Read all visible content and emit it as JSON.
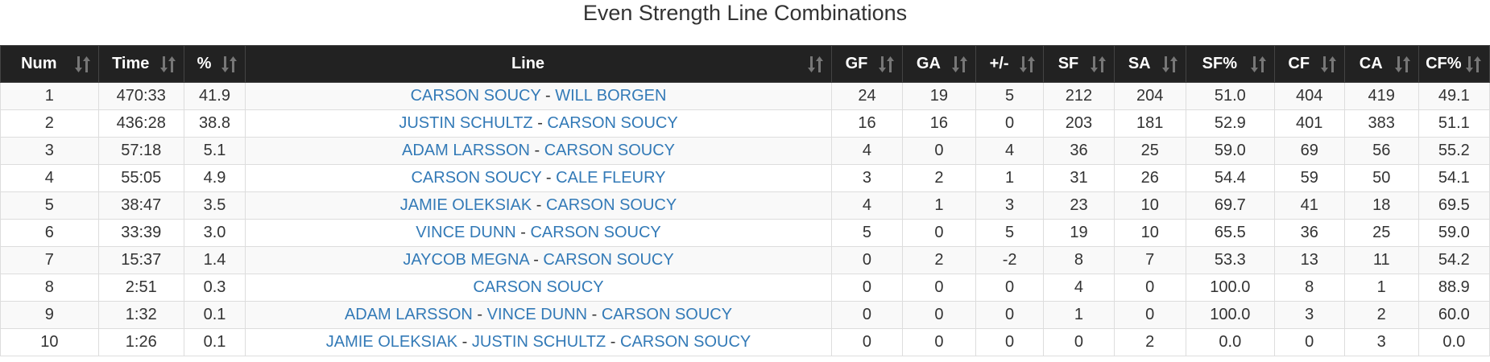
{
  "title": "Even Strength Line Combinations",
  "colors": {
    "header_bg": "#222222",
    "link": "#337ab7",
    "row_alt": "#f9f9f9"
  },
  "columns": [
    "Num",
    "Time",
    "%",
    "Line",
    "GF",
    "GA",
    "+/-",
    "SF",
    "SA",
    "SF%",
    "CF",
    "CA",
    "CF%"
  ],
  "rows": [
    {
      "num": "1",
      "time": "470:33",
      "pct": "41.9",
      "players": [
        "CARSON SOUCY",
        "WILL BORGEN"
      ],
      "gf": "24",
      "ga": "19",
      "pm": "5",
      "sf": "212",
      "sa": "204",
      "sfp": "51.0",
      "cf": "404",
      "ca": "419",
      "cfp": "49.1"
    },
    {
      "num": "2",
      "time": "436:28",
      "pct": "38.8",
      "players": [
        "JUSTIN SCHULTZ",
        "CARSON SOUCY"
      ],
      "gf": "16",
      "ga": "16",
      "pm": "0",
      "sf": "203",
      "sa": "181",
      "sfp": "52.9",
      "cf": "401",
      "ca": "383",
      "cfp": "51.1"
    },
    {
      "num": "3",
      "time": "57:18",
      "pct": "5.1",
      "players": [
        "ADAM LARSSON",
        "CARSON SOUCY"
      ],
      "gf": "4",
      "ga": "0",
      "pm": "4",
      "sf": "36",
      "sa": "25",
      "sfp": "59.0",
      "cf": "69",
      "ca": "56",
      "cfp": "55.2"
    },
    {
      "num": "4",
      "time": "55:05",
      "pct": "4.9",
      "players": [
        "CARSON SOUCY",
        "CALE FLEURY"
      ],
      "gf": "3",
      "ga": "2",
      "pm": "1",
      "sf": "31",
      "sa": "26",
      "sfp": "54.4",
      "cf": "59",
      "ca": "50",
      "cfp": "54.1"
    },
    {
      "num": "5",
      "time": "38:47",
      "pct": "3.5",
      "players": [
        "JAMIE OLEKSIAK",
        "CARSON SOUCY"
      ],
      "gf": "4",
      "ga": "1",
      "pm": "3",
      "sf": "23",
      "sa": "10",
      "sfp": "69.7",
      "cf": "41",
      "ca": "18",
      "cfp": "69.5"
    },
    {
      "num": "6",
      "time": "33:39",
      "pct": "3.0",
      "players": [
        "VINCE DUNN",
        "CARSON SOUCY"
      ],
      "gf": "5",
      "ga": "0",
      "pm": "5",
      "sf": "19",
      "sa": "10",
      "sfp": "65.5",
      "cf": "36",
      "ca": "25",
      "cfp": "59.0"
    },
    {
      "num": "7",
      "time": "15:37",
      "pct": "1.4",
      "players": [
        "JAYCOB MEGNA",
        "CARSON SOUCY"
      ],
      "gf": "0",
      "ga": "2",
      "pm": "-2",
      "sf": "8",
      "sa": "7",
      "sfp": "53.3",
      "cf": "13",
      "ca": "11",
      "cfp": "54.2"
    },
    {
      "num": "8",
      "time": "2:51",
      "pct": "0.3",
      "players": [
        "CARSON SOUCY"
      ],
      "gf": "0",
      "ga": "0",
      "pm": "0",
      "sf": "4",
      "sa": "0",
      "sfp": "100.0",
      "cf": "8",
      "ca": "1",
      "cfp": "88.9"
    },
    {
      "num": "9",
      "time": "1:32",
      "pct": "0.1",
      "players": [
        "ADAM LARSSON",
        "VINCE DUNN",
        "CARSON SOUCY"
      ],
      "gf": "0",
      "ga": "0",
      "pm": "0",
      "sf": "1",
      "sa": "0",
      "sfp": "100.0",
      "cf": "3",
      "ca": "2",
      "cfp": "60.0"
    },
    {
      "num": "10",
      "time": "1:26",
      "pct": "0.1",
      "players": [
        "JAMIE OLEKSIAK",
        "JUSTIN SCHULTZ",
        "CARSON SOUCY"
      ],
      "gf": "0",
      "ga": "0",
      "pm": "0",
      "sf": "0",
      "sa": "2",
      "sfp": "0.0",
      "cf": "0",
      "ca": "3",
      "cfp": "0.0"
    }
  ]
}
